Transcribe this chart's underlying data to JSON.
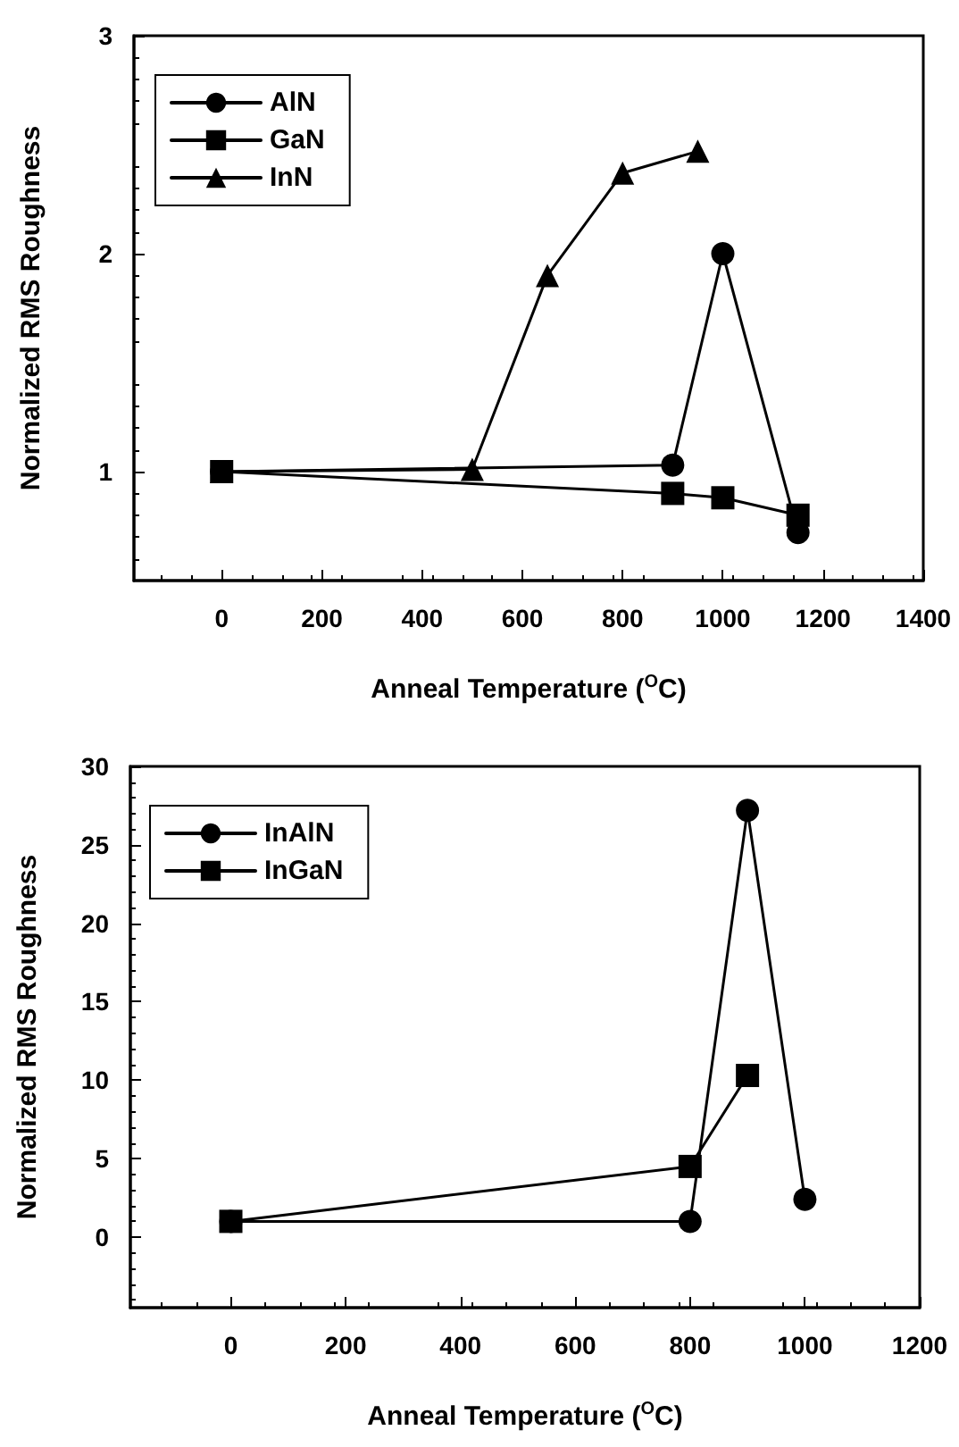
{
  "chart_data": [
    {
      "type": "line",
      "xlabel": "Anneal Temperature ($^{O}$C)",
      "ylabel": "Normalized RMS Roughness",
      "xlim": [
        -175,
        1400
      ],
      "xticks": [
        0,
        200,
        400,
        600,
        800,
        1000,
        1200,
        1400
      ],
      "ylim": [
        0.5,
        3
      ],
      "yticks": [
        1,
        2,
        3
      ],
      "grid": false,
      "legend": "top left",
      "line_style": "solid",
      "series": [
        {
          "name": "AlN",
          "color": "#000000",
          "marker": "circle",
          "x": [
            0,
            900,
            1000,
            1150
          ],
          "values": [
            1,
            1.03,
            2,
            0.72
          ]
        },
        {
          "name": "GaN",
          "color": "#000000",
          "marker": "square",
          "x": [
            0,
            900,
            1000,
            1150
          ],
          "values": [
            1,
            0.9,
            0.88,
            0.8
          ]
        },
        {
          "name": "InN",
          "color": "#000000",
          "marker": "triangle",
          "x": [
            0,
            500,
            650,
            800,
            950
          ],
          "values": [
            1,
            1.01,
            1.9,
            2.37,
            2.47
          ]
        }
      ]
    },
    {
      "type": "line",
      "xlabel": "Anneal Temperature ($^{O}$C)",
      "ylabel": "Normalized RMS Roughness",
      "xlim": [
        -175,
        1200
      ],
      "xticks": [
        0,
        200,
        400,
        600,
        800,
        1000,
        1200
      ],
      "ylim": [
        -4.5,
        30
      ],
      "yticks": [
        0,
        5,
        10,
        15,
        20,
        25,
        30
      ],
      "grid": false,
      "legend": "top left",
      "line_style": "solid",
      "series": [
        {
          "name": "InAlN",
          "color": "#000000",
          "marker": "circle",
          "x": [
            0,
            800,
            900,
            1000
          ],
          "values": [
            1,
            1,
            27.2,
            2.4
          ]
        },
        {
          "name": "InGaN",
          "color": "#000000",
          "marker": "square",
          "x": [
            0,
            800,
            900
          ],
          "values": [
            1,
            4.5,
            10.3
          ]
        }
      ]
    }
  ]
}
